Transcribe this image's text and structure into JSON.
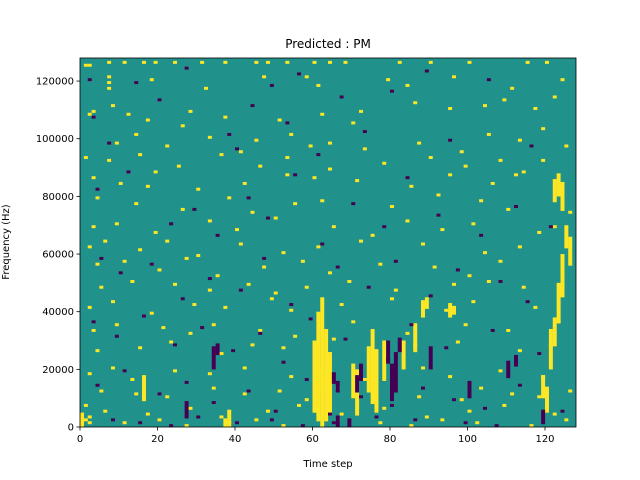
{
  "chart_data": {
    "type": "heatmap",
    "title": "Predicted : PM",
    "xlabel": "Time step",
    "ylabel": "Frequency (Hz)",
    "xlim": [
      0,
      128
    ],
    "ylim": [
      0,
      128000
    ],
    "x_ticks": [
      0,
      20,
      40,
      60,
      80,
      100,
      120
    ],
    "x_tick_labels": [
      "0",
      "20",
      "40",
      "60",
      "80",
      "100",
      "120"
    ],
    "y_ticks": [
      0,
      20000,
      40000,
      60000,
      80000,
      100000,
      120000
    ],
    "y_tick_labels": [
      "0",
      "20000",
      "40000",
      "60000",
      "80000",
      "100000",
      "120000"
    ],
    "n_time_steps": 128,
    "n_frequency_bins": 128,
    "value_scale": [
      -1,
      0,
      1
    ],
    "colors": {
      "low": "#440154",
      "mid": "#21918c",
      "high": "#fde725"
    },
    "background_value": 0,
    "grid": false,
    "high_cells": [
      [
        1,
        125
      ],
      [
        2,
        125
      ],
      [
        7,
        126
      ],
      [
        11,
        126
      ],
      [
        16,
        126
      ],
      [
        19,
        126
      ],
      [
        24,
        126
      ],
      [
        31,
        126
      ],
      [
        37,
        126
      ],
      [
        45,
        126
      ],
      [
        48,
        126
      ],
      [
        53,
        126
      ],
      [
        60,
        126
      ],
      [
        64,
        126
      ],
      [
        68,
        126
      ],
      [
        82,
        126
      ],
      [
        90,
        126
      ],
      [
        100,
        126
      ],
      [
        115,
        126
      ],
      [
        120,
        126
      ],
      [
        7,
        121
      ],
      [
        7,
        119
      ],
      [
        7,
        117
      ],
      [
        18,
        120
      ],
      [
        32,
        117
      ],
      [
        47,
        121
      ],
      [
        58,
        121
      ],
      [
        61,
        118
      ],
      [
        79,
        120
      ],
      [
        84,
        118
      ],
      [
        96,
        121
      ],
      [
        111,
        117
      ],
      [
        124,
        120
      ],
      [
        2,
        108
      ],
      [
        3,
        109
      ],
      [
        8,
        111
      ],
      [
        12,
        108
      ],
      [
        17,
        106
      ],
      [
        26,
        104
      ],
      [
        28,
        109
      ],
      [
        37,
        107
      ],
      [
        51,
        106
      ],
      [
        62,
        108
      ],
      [
        70,
        105
      ],
      [
        72,
        109
      ],
      [
        86,
        112
      ],
      [
        95,
        110
      ],
      [
        104,
        111
      ],
      [
        109,
        113
      ],
      [
        117,
        110
      ],
      [
        122,
        114
      ],
      [
        9,
        98
      ],
      [
        14,
        101
      ],
      [
        22,
        97
      ],
      [
        33,
        100
      ],
      [
        45,
        99
      ],
      [
        54,
        101
      ],
      [
        59,
        97
      ],
      [
        64,
        98
      ],
      [
        73,
        96
      ],
      [
        87,
        98
      ],
      [
        98,
        95
      ],
      [
        105,
        101
      ],
      [
        113,
        99
      ],
      [
        119,
        103
      ],
      [
        125,
        97
      ],
      [
        1,
        93
      ],
      [
        7,
        92
      ],
      [
        15,
        94
      ],
      [
        25,
        90
      ],
      [
        36,
        94
      ],
      [
        41,
        95
      ],
      [
        46,
        90
      ],
      [
        53,
        93
      ],
      [
        64,
        89
      ],
      [
        78,
        91
      ],
      [
        90,
        93
      ],
      [
        99,
        90
      ],
      [
        108,
        92
      ],
      [
        114,
        88
      ],
      [
        119,
        92
      ],
      [
        3,
        86
      ],
      [
        10,
        84
      ],
      [
        17,
        83
      ],
      [
        19,
        88
      ],
      [
        30,
        82
      ],
      [
        42,
        84
      ],
      [
        53,
        87
      ],
      [
        60,
        86
      ],
      [
        71,
        85
      ],
      [
        85,
        83
      ],
      [
        95,
        87
      ],
      [
        106,
        84
      ],
      [
        112,
        87
      ],
      [
        4,
        79
      ],
      [
        14,
        77
      ],
      [
        26,
        75
      ],
      [
        38,
        79
      ],
      [
        44,
        74
      ],
      [
        55,
        77
      ],
      [
        62,
        78
      ],
      [
        80,
        76
      ],
      [
        92,
        80
      ],
      [
        103,
        78
      ],
      [
        110,
        75
      ],
      [
        126,
        74
      ],
      [
        3,
        69
      ],
      [
        9,
        70
      ],
      [
        19,
        67
      ],
      [
        33,
        71
      ],
      [
        40,
        68
      ],
      [
        50,
        72
      ],
      [
        65,
        69
      ],
      [
        75,
        66
      ],
      [
        84,
        71
      ],
      [
        93,
        68
      ],
      [
        101,
        70
      ],
      [
        118,
        67
      ],
      [
        122,
        69
      ],
      [
        2,
        62
      ],
      [
        6,
        64
      ],
      [
        15,
        61
      ],
      [
        22,
        64
      ],
      [
        30,
        59
      ],
      [
        41,
        63
      ],
      [
        52,
        60
      ],
      [
        61,
        62
      ],
      [
        72,
        64
      ],
      [
        88,
        63
      ],
      [
        104,
        60
      ],
      [
        113,
        62
      ],
      [
        4,
        56
      ],
      [
        11,
        57
      ],
      [
        20,
        54
      ],
      [
        27,
        58
      ],
      [
        35,
        52
      ],
      [
        47,
        55
      ],
      [
        57,
        57
      ],
      [
        64,
        53
      ],
      [
        77,
        56
      ],
      [
        91,
        55
      ],
      [
        100,
        52
      ],
      [
        108,
        57
      ],
      [
        5,
        48
      ],
      [
        13,
        50
      ],
      [
        24,
        49
      ],
      [
        33,
        47
      ],
      [
        43,
        49
      ],
      [
        50,
        46
      ],
      [
        58,
        48
      ],
      [
        69,
        50
      ],
      [
        81,
        47
      ],
      [
        96,
        49
      ],
      [
        105,
        50
      ],
      [
        114,
        48
      ],
      [
        2,
        41
      ],
      [
        8,
        43
      ],
      [
        18,
        39
      ],
      [
        29,
        42
      ],
      [
        37,
        41
      ],
      [
        49,
        44
      ],
      [
        54,
        40
      ],
      [
        67,
        42
      ],
      [
        80,
        44
      ],
      [
        94,
        40
      ],
      [
        101,
        43
      ],
      [
        117,
        41
      ],
      [
        3,
        33
      ],
      [
        9,
        35
      ],
      [
        21,
        34
      ],
      [
        28,
        32
      ],
      [
        34,
        35
      ],
      [
        46,
        33
      ],
      [
        55,
        31
      ],
      [
        70,
        36
      ],
      [
        84,
        32
      ],
      [
        99,
        35
      ],
      [
        110,
        33
      ],
      [
        123,
        36
      ],
      [
        4,
        26
      ],
      [
        15,
        27
      ],
      [
        23,
        29
      ],
      [
        36,
        25
      ],
      [
        44,
        28
      ],
      [
        52,
        27
      ],
      [
        65,
        30
      ],
      [
        76,
        26
      ],
      [
        86,
        28
      ],
      [
        97,
        29
      ],
      [
        113,
        26
      ],
      [
        121,
        28
      ],
      [
        2,
        18
      ],
      [
        8,
        20
      ],
      [
        13,
        16
      ],
      [
        24,
        19
      ],
      [
        33,
        18
      ],
      [
        42,
        20
      ],
      [
        54,
        17
      ],
      [
        61,
        19
      ],
      [
        73,
        16
      ],
      [
        88,
        20
      ],
      [
        95,
        17
      ],
      [
        108,
        19
      ],
      [
        119,
        17
      ],
      [
        5,
        12
      ],
      [
        14,
        11
      ],
      [
        22,
        10
      ],
      [
        34,
        13
      ],
      [
        42,
        11
      ],
      [
        51,
        12
      ],
      [
        58,
        9
      ],
      [
        66,
        13
      ],
      [
        76,
        11
      ],
      [
        87,
        10
      ],
      [
        98,
        9
      ],
      [
        103,
        13
      ],
      [
        111,
        11
      ],
      [
        118,
        10
      ],
      [
        126,
        12
      ],
      [
        1,
        7
      ],
      [
        6,
        5
      ],
      [
        17,
        4
      ],
      [
        28,
        6
      ],
      [
        36,
        3
      ],
      [
        48,
        5
      ],
      [
        56,
        7
      ],
      [
        67,
        4
      ],
      [
        78,
        6
      ],
      [
        89,
        3
      ],
      [
        100,
        5
      ],
      [
        109,
        7
      ],
      [
        122,
        4
      ],
      [
        1,
        2
      ],
      [
        2,
        1
      ],
      [
        2,
        3
      ],
      [
        11,
        1
      ],
      [
        20,
        2
      ],
      [
        27,
        0
      ],
      [
        38,
        1
      ],
      [
        45,
        2
      ],
      [
        52,
        0
      ],
      [
        66,
        2
      ],
      [
        77,
        1
      ],
      [
        85,
        0
      ],
      [
        93,
        2
      ],
      [
        102,
        1
      ],
      [
        116,
        0
      ],
      [
        125,
        2
      ]
    ],
    "high_blocks": [
      [
        0,
        1,
        0,
        5
      ],
      [
        16,
        17,
        9,
        18
      ],
      [
        37,
        38,
        0,
        3
      ],
      [
        38,
        39,
        0,
        6
      ],
      [
        60,
        61,
        5,
        30
      ],
      [
        61,
        62,
        2,
        40
      ],
      [
        62,
        63,
        0,
        45
      ],
      [
        63,
        64,
        2,
        34
      ],
      [
        64,
        65,
        4,
        26
      ],
      [
        62,
        63,
        14,
        18
      ],
      [
        60,
        61,
        8,
        11
      ],
      [
        70,
        71,
        10,
        22
      ],
      [
        71,
        72,
        4,
        20
      ],
      [
        74,
        75,
        12,
        28
      ],
      [
        75,
        76,
        8,
        34
      ],
      [
        76,
        77,
        5,
        26
      ],
      [
        78,
        79,
        16,
        30
      ],
      [
        83,
        84,
        20,
        30
      ],
      [
        86,
        87,
        26,
        36
      ],
      [
        88,
        89,
        38,
        44
      ],
      [
        89,
        90,
        41,
        45
      ],
      [
        95,
        96,
        38,
        43
      ],
      [
        96,
        97,
        39,
        42
      ],
      [
        119,
        120,
        10,
        18
      ],
      [
        120,
        121,
        5,
        14
      ],
      [
        121,
        122,
        20,
        34
      ],
      [
        122,
        123,
        28,
        38
      ],
      [
        123,
        124,
        36,
        50
      ],
      [
        124,
        125,
        45,
        60
      ],
      [
        122,
        123,
        78,
        86
      ],
      [
        123,
        124,
        80,
        88
      ],
      [
        124,
        125,
        75,
        85
      ],
      [
        125,
        126,
        62,
        70
      ],
      [
        126,
        127,
        56,
        66
      ]
    ],
    "low_cells": [
      [
        2,
        120
      ],
      [
        3,
        107
      ],
      [
        7,
        98
      ],
      [
        14,
        119
      ],
      [
        20,
        113
      ],
      [
        27,
        124
      ],
      [
        38,
        101
      ],
      [
        40,
        96
      ],
      [
        44,
        111
      ],
      [
        49,
        118
      ],
      [
        53,
        105
      ],
      [
        56,
        122
      ],
      [
        61,
        94
      ],
      [
        67,
        114
      ],
      [
        73,
        102
      ],
      [
        80,
        116
      ],
      [
        89,
        123
      ],
      [
        95,
        99
      ],
      [
        105,
        120
      ],
      [
        116,
        97
      ],
      [
        4,
        82
      ],
      [
        12,
        88
      ],
      [
        23,
        70
      ],
      [
        29,
        75
      ],
      [
        35,
        66
      ],
      [
        43,
        79
      ],
      [
        48,
        72
      ],
      [
        55,
        87
      ],
      [
        62,
        63
      ],
      [
        70,
        77
      ],
      [
        78,
        69
      ],
      [
        84,
        86
      ],
      [
        92,
        73
      ],
      [
        103,
        66
      ],
      [
        112,
        76
      ],
      [
        121,
        69
      ],
      [
        5,
        58
      ],
      [
        10,
        53
      ],
      [
        18,
        56
      ],
      [
        26,
        44
      ],
      [
        33,
        51
      ],
      [
        41,
        47
      ],
      [
        47,
        58
      ],
      [
        54,
        42
      ],
      [
        66,
        55
      ],
      [
        74,
        48
      ],
      [
        81,
        57
      ],
      [
        90,
        45
      ],
      [
        97,
        54
      ],
      [
        108,
        50
      ],
      [
        115,
        43
      ],
      [
        3,
        36
      ],
      [
        9,
        31
      ],
      [
        16,
        38
      ],
      [
        24,
        28
      ],
      [
        31,
        34
      ],
      [
        39,
        26
      ],
      [
        46,
        32
      ],
      [
        52,
        22
      ],
      [
        59,
        37
      ],
      [
        68,
        30
      ],
      [
        79,
        23
      ],
      [
        85,
        35
      ],
      [
        94,
        27
      ],
      [
        106,
        33
      ],
      [
        118,
        25
      ],
      [
        4,
        14
      ],
      [
        11,
        19
      ],
      [
        20,
        11
      ],
      [
        27,
        15
      ],
      [
        34,
        8
      ],
      [
        43,
        12
      ],
      [
        50,
        5
      ],
      [
        58,
        16
      ],
      [
        64,
        4
      ],
      [
        72,
        10
      ],
      [
        80,
        7
      ],
      [
        88,
        13
      ],
      [
        96,
        9
      ],
      [
        104,
        6
      ],
      [
        113,
        14
      ],
      [
        124,
        5
      ],
      [
        8,
        2
      ],
      [
        15,
        1
      ],
      [
        23,
        0
      ],
      [
        30,
        3
      ],
      [
        40,
        1
      ],
      [
        49,
        2
      ],
      [
        57,
        0
      ],
      [
        65,
        1
      ],
      [
        76,
        3
      ],
      [
        86,
        2
      ],
      [
        99,
        1
      ],
      [
        107,
        0
      ]
    ],
    "low_blocks": [
      [
        27,
        28,
        3,
        9
      ],
      [
        34,
        35,
        20,
        28
      ],
      [
        35,
        36,
        25,
        29
      ],
      [
        66,
        67,
        0,
        4
      ],
      [
        69,
        70,
        0,
        3
      ],
      [
        65,
        66,
        15,
        19
      ],
      [
        66,
        67,
        12,
        16
      ],
      [
        71,
        72,
        12,
        18
      ],
      [
        72,
        73,
        16,
        22
      ],
      [
        80,
        81,
        9,
        22
      ],
      [
        81,
        82,
        12,
        26
      ],
      [
        79,
        80,
        22,
        30
      ],
      [
        82,
        83,
        26,
        31
      ],
      [
        90,
        91,
        20,
        28
      ],
      [
        100,
        101,
        10,
        16
      ],
      [
        110,
        111,
        17,
        23
      ],
      [
        112,
        113,
        21,
        25
      ],
      [
        119,
        120,
        1,
        6
      ]
    ]
  }
}
